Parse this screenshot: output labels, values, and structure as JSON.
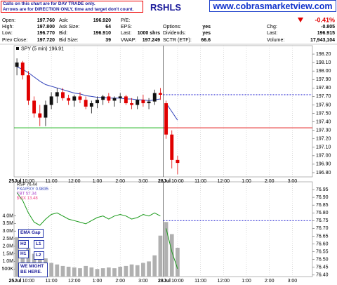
{
  "header": {
    "notice": [
      "Calls on this chart are for DAY TRADE only.",
      "Arrows are for DIRECTION ONLY, time and target don't count."
    ],
    "symbol": "RSHLS",
    "site": "www.cobrasmarketview.com"
  },
  "quote": {
    "rows": [
      [
        "Open:",
        "197.760",
        "Ask:",
        "196.920",
        "P/E:",
        null,
        null,
        null,
        null,
        "-0.41%"
      ],
      [
        "High:",
        "197.800",
        "Ask Size:",
        "64",
        "EPS:",
        null,
        "Options:",
        "yes",
        "Chg:",
        "-0.805"
      ],
      [
        "Low:",
        "196.770",
        "Bid:",
        "196.910",
        "Last:",
        "1000 shrs",
        "Dividends:",
        "yes",
        "Last:",
        "196.915"
      ],
      [
        "Prev Close:",
        "197.720",
        "Bid Size:",
        "39",
        "VWAP:",
        "197.249",
        "SCTR (ETF):",
        "66.6",
        "Volume:",
        "17,943,104"
      ]
    ]
  },
  "chart_data": {
    "type": "candlestick",
    "legend": "SPY (5 min) 196.91",
    "up_color": "#111111",
    "down_color": "#e00000",
    "ma_color": "#3344bb",
    "ylim": [
      196.75,
      198.3
    ],
    "yticks": [
      {
        "value": 198.2,
        "label": "198.20"
      },
      {
        "value": 198.1,
        "label": "198.10"
      },
      {
        "value": 198.0,
        "label": "198.00"
      },
      {
        "value": 197.9,
        "label": "197.90"
      },
      {
        "value": 197.8,
        "label": "197.80"
      },
      {
        "value": 197.7,
        "label": "197.70"
      },
      {
        "value": 197.6,
        "label": "197.60"
      },
      {
        "value": 197.5,
        "label": "197.50"
      },
      {
        "value": 197.4,
        "label": "197.40"
      },
      {
        "value": 197.3,
        "label": "197.30"
      },
      {
        "value": 197.2,
        "label": "197.20"
      },
      {
        "value": 197.1,
        "label": "197.10"
      },
      {
        "value": 197.0,
        "label": "197.00"
      },
      {
        "value": 196.9,
        "label": "196.90"
      },
      {
        "value": 196.8,
        "label": "196.80"
      }
    ],
    "levels": [
      {
        "value": 197.33,
        "colors": [
          "#00aa00",
          "#e00000"
        ]
      },
      {
        "value": 197.72,
        "colors": [
          null,
          "#0000cc"
        ],
        "dashed": true
      }
    ],
    "days": [
      {
        "label": "25Jul",
        "categories": [
          null,
          null,
          "10:00",
          null,
          null,
          null,
          "11:00",
          null,
          null,
          null,
          "12:00",
          null,
          null,
          null,
          "1:00",
          null,
          null,
          null,
          "2:00",
          null,
          null,
          null,
          "3:00",
          null,
          null,
          null
        ],
        "open": [
          198.05,
          198.1,
          197.95,
          197.65,
          197.5,
          197.45,
          197.6,
          197.7,
          197.75,
          197.68,
          197.65,
          197.7,
          197.66,
          197.58,
          197.62,
          197.66,
          197.7,
          197.65,
          197.68,
          197.7,
          197.62,
          197.6,
          197.66,
          197.62,
          197.64,
          197.74
        ],
        "high": [
          198.15,
          198.12,
          198.0,
          197.7,
          197.6,
          197.65,
          197.75,
          197.8,
          197.8,
          197.72,
          197.72,
          197.75,
          197.7,
          197.65,
          197.7,
          197.72,
          197.74,
          197.7,
          197.74,
          197.72,
          197.68,
          197.7,
          197.72,
          197.68,
          197.78,
          197.8
        ],
        "low": [
          197.95,
          197.9,
          197.6,
          197.45,
          197.35,
          197.35,
          197.55,
          197.62,
          197.65,
          197.6,
          197.58,
          197.62,
          197.55,
          197.5,
          197.56,
          197.6,
          197.62,
          197.58,
          197.62,
          197.6,
          197.55,
          197.55,
          197.58,
          197.55,
          197.6,
          197.66
        ],
        "close": [
          198.1,
          197.95,
          197.65,
          197.5,
          197.45,
          197.6,
          197.7,
          197.75,
          197.68,
          197.65,
          197.7,
          197.66,
          197.58,
          197.62,
          197.66,
          197.7,
          197.65,
          197.68,
          197.7,
          197.62,
          197.6,
          197.66,
          197.62,
          197.64,
          197.74,
          197.72
        ],
        "ma": [
          198.05,
          198.02,
          197.98,
          197.93,
          197.88,
          197.84,
          197.82,
          197.8,
          197.78,
          197.76,
          197.74,
          197.73,
          197.71,
          197.7,
          197.69,
          197.69,
          197.68,
          197.68,
          197.68,
          197.67,
          197.67,
          197.66,
          197.66,
          197.65,
          197.66,
          197.67
        ],
        "volume": [
          2600000,
          1700000,
          1900000,
          1500000,
          1400000,
          1200000,
          900000,
          800000,
          700000,
          650000,
          600000,
          550000,
          700000,
          600000,
          500000,
          550000,
          600000,
          550000,
          650000,
          700000,
          800000,
          750000,
          900000,
          1000000,
          1400000,
          2700000
        ],
        "rsp": [
          76.93,
          76.88,
          76.8,
          76.74,
          76.72,
          76.76,
          76.79,
          76.8,
          76.78,
          76.76,
          76.75,
          76.74,
          76.73,
          76.75,
          76.77,
          76.78,
          76.76,
          76.78,
          76.79,
          76.78,
          76.76,
          76.77,
          76.79,
          76.78,
          76.8,
          76.78
        ]
      },
      {
        "label": "28Jul",
        "categories": [
          null,
          null,
          "10:00",
          null,
          null,
          null,
          "11:00",
          null,
          null,
          null,
          "12:00",
          null,
          null,
          null,
          "1:00",
          null,
          null,
          null,
          "2:00",
          null,
          null,
          null,
          "3:00",
          null,
          null,
          null
        ],
        "open": [
          197.62,
          197.25,
          196.95,
          null,
          null,
          null,
          null,
          null,
          null,
          null,
          null,
          null,
          null,
          null,
          null,
          null,
          null,
          null,
          null,
          null,
          null,
          null,
          null,
          null,
          null,
          null
        ],
        "high": [
          197.65,
          197.3,
          197.0,
          null,
          null,
          null,
          null,
          null,
          null,
          null,
          null,
          null,
          null,
          null,
          null,
          null,
          null,
          null,
          null,
          null,
          null,
          null,
          null,
          null,
          null,
          null
        ],
        "low": [
          197.2,
          196.85,
          196.78,
          null,
          null,
          null,
          null,
          null,
          null,
          null,
          null,
          null,
          null,
          null,
          null,
          null,
          null,
          null,
          null,
          null,
          null,
          null,
          null,
          null,
          null,
          null
        ],
        "close": [
          197.25,
          196.95,
          196.915,
          null,
          null,
          null,
          null,
          null,
          null,
          null,
          null,
          null,
          null,
          null,
          null,
          null,
          null,
          null,
          null,
          null,
          null,
          null,
          null,
          null,
          null,
          null
        ],
        "ma": [
          197.62,
          197.52,
          197.42,
          null,
          null,
          null,
          null,
          null,
          null,
          null,
          null,
          null,
          null,
          null,
          null,
          null,
          null,
          null,
          null,
          null,
          null,
          null,
          null,
          null,
          null,
          null
        ],
        "volume": [
          3600000,
          2800000,
          1900000,
          null,
          null,
          null,
          null,
          null,
          null,
          null,
          null,
          null,
          null,
          null,
          null,
          null,
          null,
          null,
          null,
          null,
          null,
          null,
          null,
          null,
          null,
          null
        ],
        "rsp": [
          76.7,
          76.55,
          76.44,
          null,
          null,
          null,
          null,
          null,
          null,
          null,
          null,
          null,
          null,
          null,
          null,
          null,
          null,
          null,
          null,
          null,
          null,
          null,
          null,
          null,
          null,
          null
        ]
      }
    ],
    "lower": {
      "legend": [
        {
          "text": "RSP 76.44",
          "color": "#000000"
        },
        {
          "text": "FXA/FXY 0.9835",
          "color": "#3344bb"
        },
        {
          "text": "TBT 57.34",
          "color": "#aa44cc"
        },
        {
          "text": "$VIX 13.48",
          "color": "#ee4488"
        }
      ],
      "rsp_color": "#1a9a1a",
      "volume_color": "#b0b0b0",
      "ylim": [
        76.39,
        77.0
      ],
      "yticks": [
        76.95,
        {
          "value": 76.9,
          "label": "76.90"
        },
        76.85,
        {
          "value": 76.8,
          "label": "76.80"
        },
        76.75,
        {
          "value": 76.7,
          "label": "76.70"
        },
        76.65,
        {
          "value": 76.6,
          "label": "76.60"
        },
        76.55,
        {
          "value": 76.5,
          "label": "76.50"
        },
        76.45,
        {
          "value": 76.4,
          "label": "76.40"
        }
      ],
      "vol_ylim": [
        0,
        6250000
      ],
      "vol_yticks": [
        {
          "value": 4000000,
          "label": "4.0M"
        },
        {
          "value": 3500000,
          "label": "3.5M"
        },
        {
          "value": 3000000,
          "label": "3.0M"
        },
        {
          "value": 2500000,
          "label": "2.5M"
        },
        {
          "value": 2000000,
          "label": "2.0M"
        },
        {
          "value": 1500000,
          "label": "1.5M"
        },
        {
          "value": 1000000,
          "label": "1.0M"
        },
        {
          "value": 500000,
          "label": "500K"
        }
      ],
      "levels": [
        {
          "value": 76.75,
          "colors": [
            null,
            "#0000cc"
          ],
          "dashed": true
        }
      ],
      "annotations": [
        "EMA Gap",
        "H2",
        "L1",
        "H1",
        "L2",
        "WE MIGHT BE HERE."
      ]
    }
  }
}
